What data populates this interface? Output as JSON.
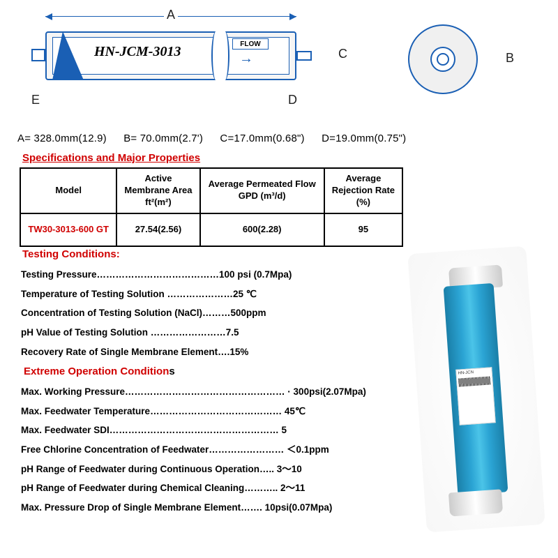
{
  "diagram": {
    "part_label": "HN-JCM-3013",
    "flow_label": "FLOW",
    "dim_labels": {
      "A": "A",
      "B": "B",
      "C": "C",
      "D": "D",
      "E": "E"
    }
  },
  "dimensions_line": {
    "A": "A= 328.0mm(12.9)",
    "B": "B= 70.0mm(2.7')",
    "C": "C=17.0mm(0.68\")",
    "D": "D=19.0mm(0.75\")"
  },
  "headings": {
    "specs": "Specifications and Major Properties",
    "testing": "Testing Conditions:",
    "extreme": "Extreme Operation Condition",
    "extreme_s": "s"
  },
  "table": {
    "headers": {
      "model": "Model",
      "area": "Active\nMembrane Area\nft²(m²)",
      "flow": "Average Permeated Flow\nGPD (m³/d)",
      "rej": "Average\nRejection Rate\n(%)"
    },
    "row": {
      "model": "TW30-3013-600 GT",
      "area": "27.54(2.56)",
      "flow": "600(2.28)",
      "rej": "95"
    }
  },
  "testing_conditions": [
    "Testing Pressure…………………………………100 psi (0.7Mpa)",
    "Temperature of Testing Solution …………………25 ℃",
    "Concentration of Testing Solution (NaCl)………500ppm",
    "pH Value of Testing Solution ……………………7.5",
    "Recovery Rate of Single Membrane Element….15%"
  ],
  "extreme_conditions": [
    "Max. Working Pressure…………………………………………… · 300psi(2.07Mpa)",
    "Max. Feedwater Temperature…………………………………… 45℃",
    "Max. Feedwater SDI……………………………………………… 5",
    "Free Chlorine Concentration of Feedwater…………………… ＜0.1ppm",
    "pH Range of Feedwater during Continuous Operation…..  3～10",
    "pH Range of Feedwater during Chemical Cleaning………..  2～11",
    "Max. Pressure Drop of Single Membrane Element…….    10psi(0.07Mpa)"
  ],
  "photo_label": "HN-JCN"
}
